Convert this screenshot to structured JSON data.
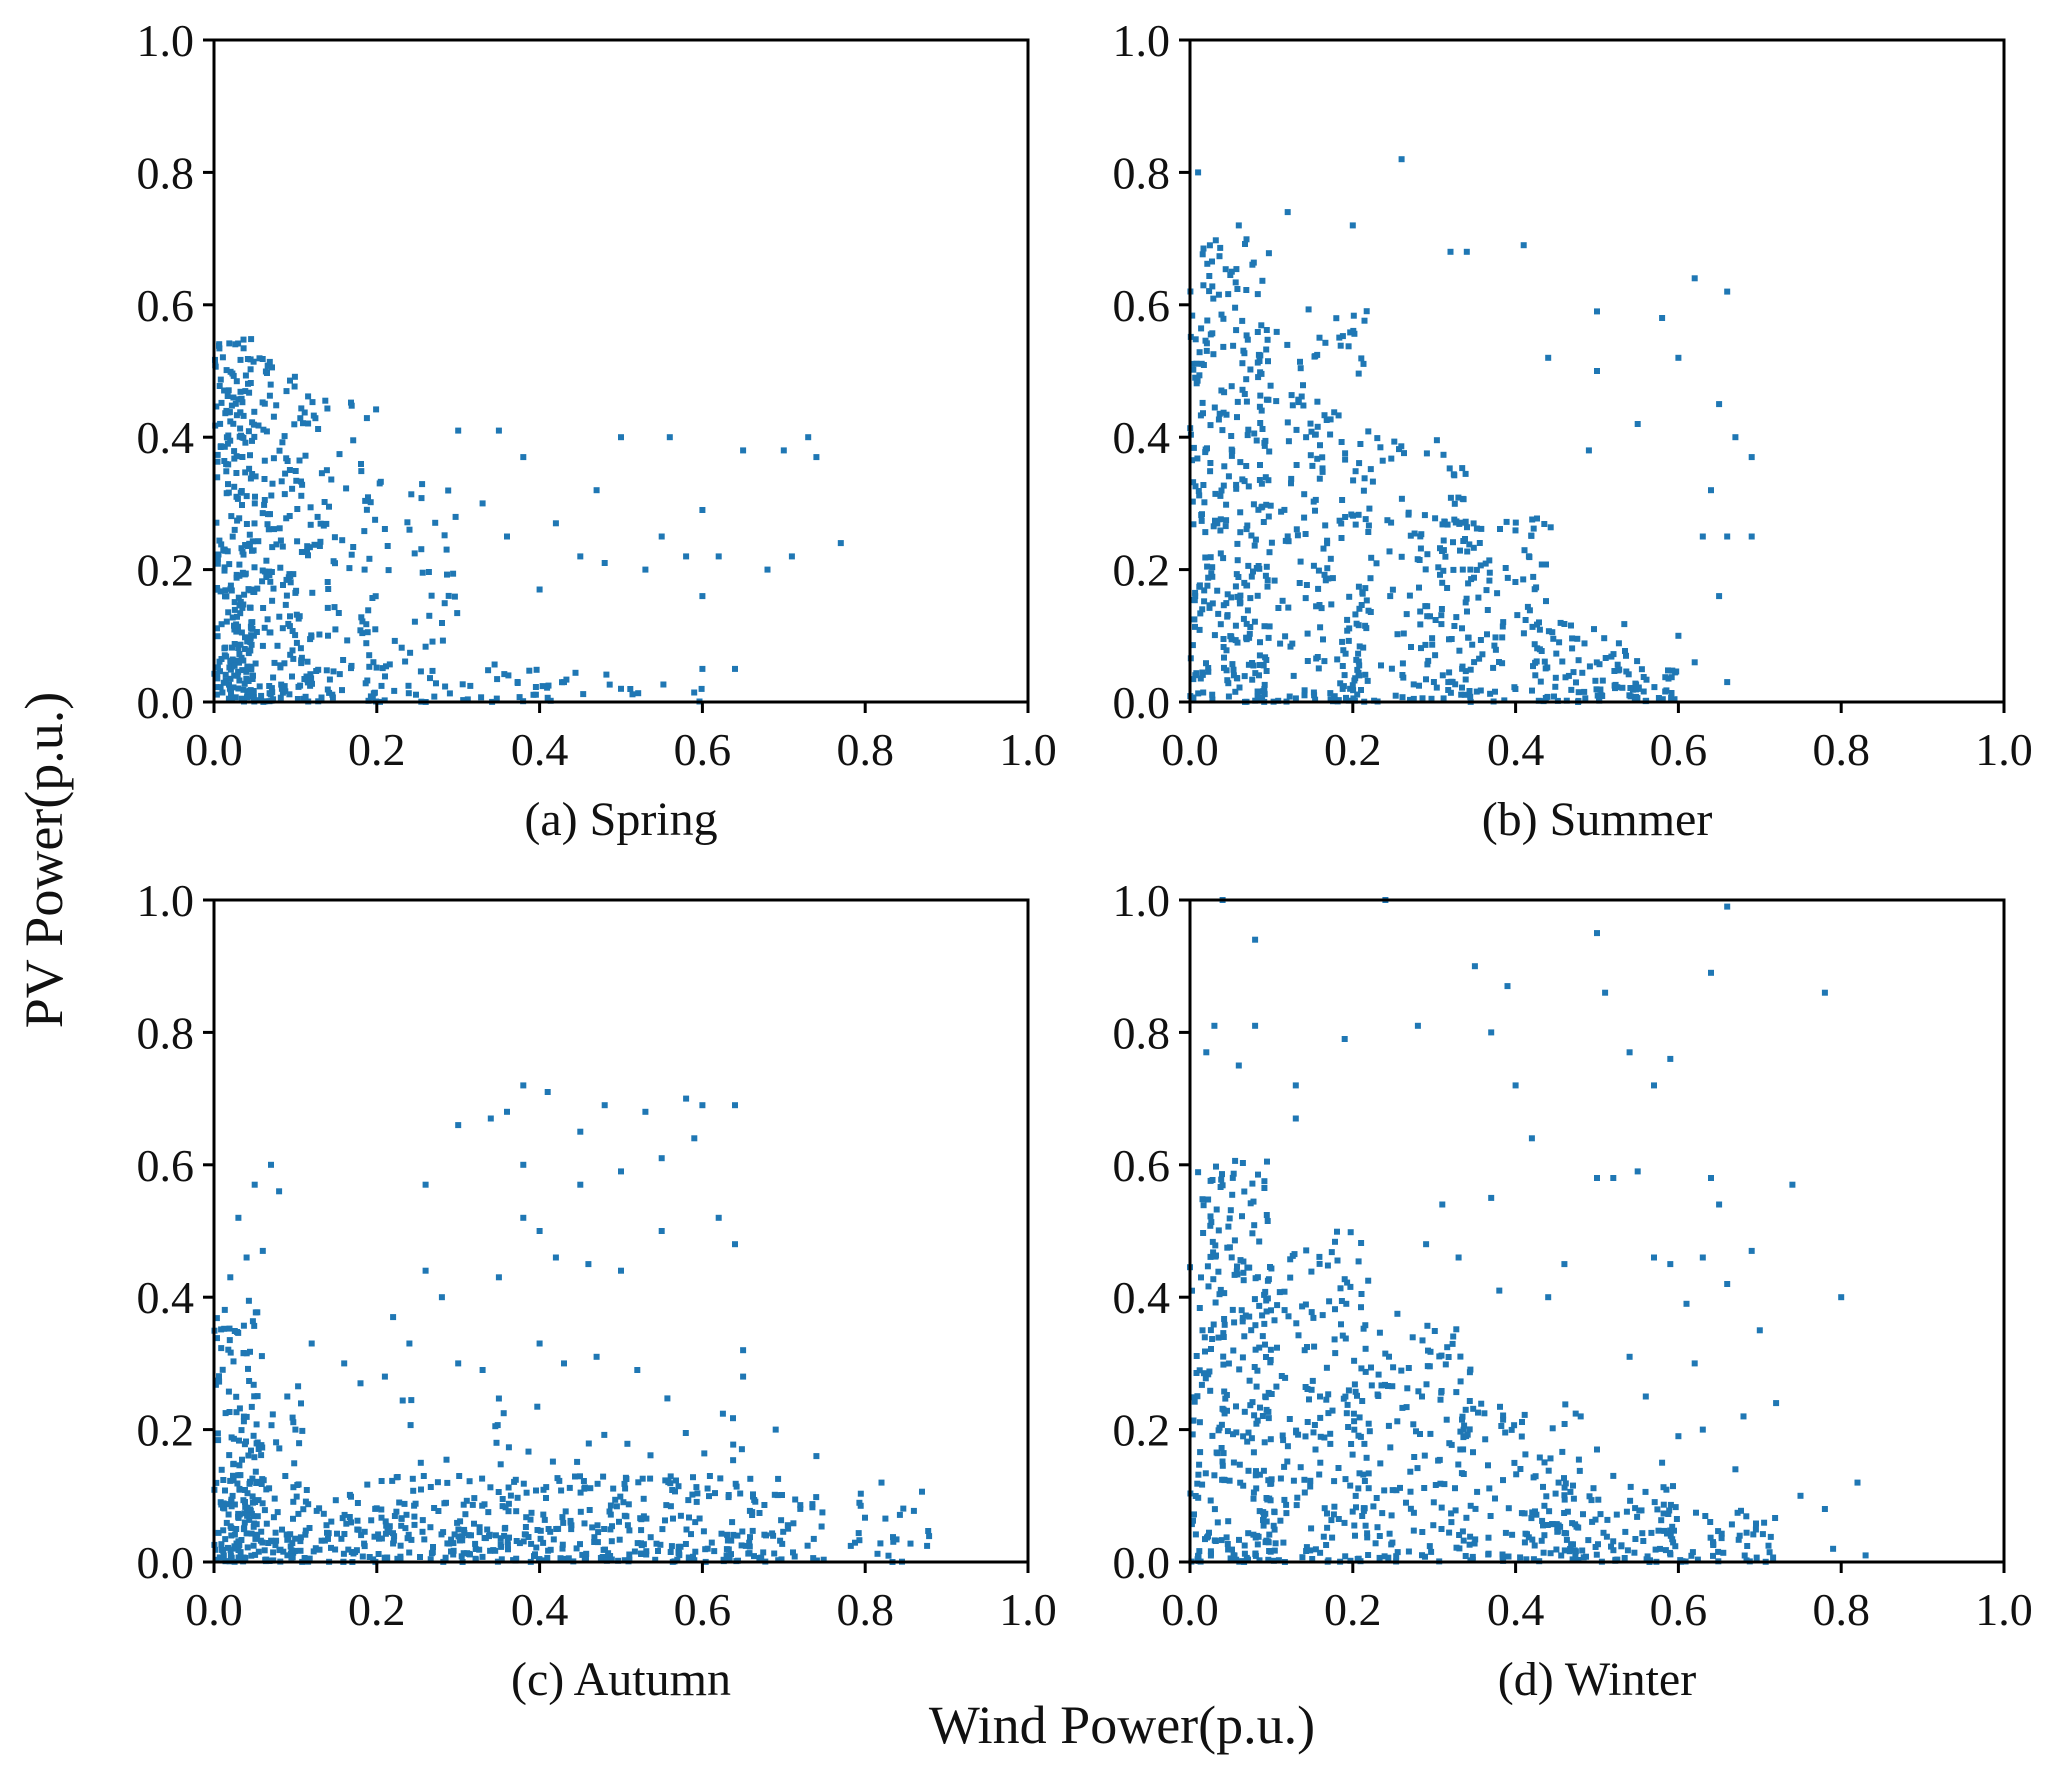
{
  "figure": {
    "ylabel": "PV Power(p.u.)",
    "xlabel": "Wind Power(p.u.)",
    "marker_color": "#1f77b4"
  },
  "chart_data": [
    {
      "type": "scatter",
      "caption": "(a) Spring",
      "xlim": [
        0,
        1
      ],
      "ylim": [
        0,
        1
      ],
      "xticks": [
        "0.0",
        "0.2",
        "0.4",
        "0.6",
        "0.8",
        "1.0"
      ],
      "yticks": [
        "0.0",
        "0.2",
        "0.4",
        "0.6",
        "0.8",
        "1.0"
      ],
      "points": {
        "gen": [
          {
            "n": 230,
            "x": [
              0,
              0.05
            ],
            "y": [
              0,
              0.55
            ]
          },
          {
            "n": 180,
            "x": [
              0.03,
              0.12
            ],
            "y": [
              0,
              0.52
            ]
          },
          {
            "n": 90,
            "x": [
              0.1,
              0.2
            ],
            "y": [
              0,
              0.46
            ]
          },
          {
            "n": 60,
            "x": [
              0.18,
              0.3
            ],
            "y": [
              0,
              0.35
            ]
          },
          {
            "n": 50,
            "x": [
              0,
              0.45
            ],
            "y": [
              0,
              0.06
            ]
          },
          {
            "n": 25,
            "x": [
              0.3,
              0.6
            ],
            "y": [
              0,
              0.05
            ]
          }
        ],
        "fixed": [
          [
            0.3,
            0.41
          ],
          [
            0.35,
            0.41
          ],
          [
            0.38,
            0.37
          ],
          [
            0.5,
            0.4
          ],
          [
            0.56,
            0.4
          ],
          [
            0.6,
            0.29
          ],
          [
            0.62,
            0.22
          ],
          [
            0.65,
            0.38
          ],
          [
            0.7,
            0.38
          ],
          [
            0.73,
            0.4
          ],
          [
            0.74,
            0.37
          ],
          [
            0.77,
            0.24
          ],
          [
            0.68,
            0.2
          ],
          [
            0.45,
            0.22
          ],
          [
            0.47,
            0.32
          ],
          [
            0.42,
            0.27
          ],
          [
            0.55,
            0.25
          ],
          [
            0.48,
            0.21
          ],
          [
            0.58,
            0.22
          ],
          [
            0.53,
            0.2
          ],
          [
            0.4,
            0.17
          ],
          [
            0.33,
            0.3
          ],
          [
            0.36,
            0.25
          ],
          [
            0.6,
            0.16
          ],
          [
            0.71,
            0.22
          ],
          [
            0.64,
            0.05
          ],
          [
            0.6,
            0.05
          ],
          [
            0.5,
            0.02
          ],
          [
            0.43,
            0.03
          ]
        ]
      }
    },
    {
      "type": "scatter",
      "caption": "(b) Summer",
      "xlim": [
        0,
        1
      ],
      "ylim": [
        0,
        1
      ],
      "xticks": [
        "0.0",
        "0.2",
        "0.4",
        "0.6",
        "0.8",
        "1.0"
      ],
      "yticks": [
        "0.0",
        "0.2",
        "0.4",
        "0.6",
        "0.8",
        "1.0"
      ],
      "points": {
        "gen": [
          {
            "n": 300,
            "x": [
              0,
              0.1
            ],
            "y": [
              0,
              0.7
            ]
          },
          {
            "n": 200,
            "x": [
              0.08,
              0.22
            ],
            "y": [
              0,
              0.6
            ]
          },
          {
            "n": 140,
            "x": [
              0.2,
              0.35
            ],
            "y": [
              0,
              0.4
            ]
          },
          {
            "n": 110,
            "x": [
              0.3,
              0.45
            ],
            "y": [
              0,
              0.28
            ]
          },
          {
            "n": 70,
            "x": [
              0.42,
              0.55
            ],
            "y": [
              0,
              0.12
            ]
          },
          {
            "n": 40,
            "x": [
              0.5,
              0.6
            ],
            "y": [
              0,
              0.05
            ]
          }
        ],
        "fixed": [
          [
            0.01,
            0.8
          ],
          [
            0.26,
            0.82
          ],
          [
            0.32,
            0.68
          ],
          [
            0.34,
            0.68
          ],
          [
            0.41,
            0.69
          ],
          [
            0.2,
            0.72
          ],
          [
            0.12,
            0.74
          ],
          [
            0.06,
            0.72
          ],
          [
            0.5,
            0.59
          ],
          [
            0.58,
            0.58
          ],
          [
            0.62,
            0.64
          ],
          [
            0.66,
            0.62
          ],
          [
            0.65,
            0.45
          ],
          [
            0.67,
            0.4
          ],
          [
            0.69,
            0.37
          ],
          [
            0.55,
            0.42
          ],
          [
            0.44,
            0.52
          ],
          [
            0.5,
            0.5
          ],
          [
            0.6,
            0.52
          ],
          [
            0.64,
            0.32
          ],
          [
            0.66,
            0.25
          ],
          [
            0.69,
            0.25
          ],
          [
            0.63,
            0.25
          ],
          [
            0.49,
            0.38
          ],
          [
            0.6,
            0.1
          ],
          [
            0.65,
            0.16
          ],
          [
            0.62,
            0.06
          ],
          [
            0.66,
            0.03
          ]
        ]
      }
    },
    {
      "type": "scatter",
      "caption": "(c) Autumn",
      "xlim": [
        0,
        1
      ],
      "ylim": [
        0,
        1
      ],
      "xticks": [
        "0.0",
        "0.2",
        "0.4",
        "0.6",
        "0.8",
        "1.0"
      ],
      "yticks": [
        "0.0",
        "0.2",
        "0.4",
        "0.6",
        "0.8",
        "1.0"
      ],
      "points": {
        "gen": [
          {
            "n": 120,
            "x": [
              0,
              0.06
            ],
            "y": [
              0,
              0.4
            ]
          },
          {
            "n": 60,
            "x": [
              0.02,
              0.12
            ],
            "y": [
              0,
              0.28
            ]
          },
          {
            "n": 420,
            "x": [
              0,
              0.75
            ],
            "y": [
              0,
              0.13
            ]
          },
          {
            "n": 120,
            "x": [
              0.05,
              0.7
            ],
            "y": [
              0,
              0.05
            ]
          },
          {
            "n": 45,
            "x": [
              0.2,
              0.65
            ],
            "y": [
              0.1,
              0.25
            ]
          },
          {
            "n": 25,
            "x": [
              0.78,
              0.88
            ],
            "y": [
              0,
              0.12
            ]
          }
        ],
        "fixed": [
          [
            0.05,
            0.57
          ],
          [
            0.07,
            0.6
          ],
          [
            0.08,
            0.56
          ],
          [
            0.03,
            0.52
          ],
          [
            0.06,
            0.47
          ],
          [
            0.04,
            0.46
          ],
          [
            0.02,
            0.43
          ],
          [
            0.26,
            0.57
          ],
          [
            0.26,
            0.44
          ],
          [
            0.3,
            0.66
          ],
          [
            0.34,
            0.67
          ],
          [
            0.36,
            0.68
          ],
          [
            0.38,
            0.72
          ],
          [
            0.41,
            0.71
          ],
          [
            0.45,
            0.65
          ],
          [
            0.48,
            0.69
          ],
          [
            0.53,
            0.68
          ],
          [
            0.55,
            0.61
          ],
          [
            0.58,
            0.7
          ],
          [
            0.6,
            0.69
          ],
          [
            0.64,
            0.69
          ],
          [
            0.59,
            0.64
          ],
          [
            0.62,
            0.52
          ],
          [
            0.64,
            0.48
          ],
          [
            0.38,
            0.6
          ],
          [
            0.38,
            0.52
          ],
          [
            0.4,
            0.5
          ],
          [
            0.42,
            0.46
          ],
          [
            0.35,
            0.43
          ],
          [
            0.46,
            0.45
          ],
          [
            0.45,
            0.57
          ],
          [
            0.5,
            0.59
          ],
          [
            0.5,
            0.44
          ],
          [
            0.55,
            0.5
          ],
          [
            0.28,
            0.4
          ],
          [
            0.3,
            0.3
          ],
          [
            0.33,
            0.29
          ],
          [
            0.4,
            0.33
          ],
          [
            0.43,
            0.3
          ],
          [
            0.47,
            0.31
          ],
          [
            0.52,
            0.29
          ],
          [
            0.65,
            0.32
          ],
          [
            0.65,
            0.28
          ],
          [
            0.22,
            0.37
          ],
          [
            0.24,
            0.33
          ],
          [
            0.21,
            0.28
          ],
          [
            0.16,
            0.3
          ],
          [
            0.18,
            0.27
          ],
          [
            0.12,
            0.33
          ],
          [
            0.09,
            0.25
          ],
          [
            0.1,
            0.2
          ],
          [
            0.69,
            0.2
          ],
          [
            0.74,
            0.16
          ],
          [
            0.82,
            0.12
          ]
        ]
      }
    },
    {
      "type": "scatter",
      "caption": "(d) Winter",
      "xlim": [
        0,
        1
      ],
      "ylim": [
        0,
        1
      ],
      "xticks": [
        "0.0",
        "0.2",
        "0.4",
        "0.6",
        "0.8",
        "1.0"
      ],
      "yticks": [
        "0.0",
        "0.2",
        "0.4",
        "0.6",
        "0.8",
        "1.0"
      ],
      "points": {
        "gen": [
          {
            "n": 250,
            "x": [
              0,
              0.1
            ],
            "y": [
              0,
              0.62
            ]
          },
          {
            "n": 200,
            "x": [
              0.08,
              0.22
            ],
            "y": [
              0,
              0.5
            ]
          },
          {
            "n": 150,
            "x": [
              0.2,
              0.35
            ],
            "y": [
              0,
              0.38
            ]
          },
          {
            "n": 110,
            "x": [
              0.33,
              0.48
            ],
            "y": [
              0,
              0.24
            ]
          },
          {
            "n": 80,
            "x": [
              0.45,
              0.6
            ],
            "y": [
              0,
              0.12
            ]
          },
          {
            "n": 60,
            "x": [
              0.55,
              0.72
            ],
            "y": [
              0,
              0.08
            ]
          }
        ],
        "fixed": [
          [
            0.04,
            1.0
          ],
          [
            0.24,
            1.0
          ],
          [
            0.66,
            0.99
          ],
          [
            0.5,
            0.95
          ],
          [
            0.64,
            0.89
          ],
          [
            0.08,
            0.94
          ],
          [
            0.35,
            0.9
          ],
          [
            0.39,
            0.87
          ],
          [
            0.51,
            0.86
          ],
          [
            0.78,
            0.86
          ],
          [
            0.03,
            0.81
          ],
          [
            0.08,
            0.81
          ],
          [
            0.28,
            0.81
          ],
          [
            0.19,
            0.79
          ],
          [
            0.13,
            0.72
          ],
          [
            0.13,
            0.67
          ],
          [
            0.37,
            0.8
          ],
          [
            0.4,
            0.72
          ],
          [
            0.42,
            0.64
          ],
          [
            0.54,
            0.77
          ],
          [
            0.57,
            0.72
          ],
          [
            0.59,
            0.76
          ],
          [
            0.06,
            0.75
          ],
          [
            0.02,
            0.77
          ],
          [
            0.74,
            0.57
          ],
          [
            0.72,
            0.24
          ],
          [
            0.64,
            0.58
          ],
          [
            0.65,
            0.54
          ],
          [
            0.57,
            0.46
          ],
          [
            0.59,
            0.45
          ],
          [
            0.63,
            0.46
          ],
          [
            0.66,
            0.42
          ],
          [
            0.69,
            0.47
          ],
          [
            0.61,
            0.39
          ],
          [
            0.52,
            0.58
          ],
          [
            0.55,
            0.59
          ],
          [
            0.5,
            0.58
          ],
          [
            0.46,
            0.45
          ],
          [
            0.44,
            0.4
          ],
          [
            0.37,
            0.55
          ],
          [
            0.38,
            0.41
          ],
          [
            0.31,
            0.54
          ],
          [
            0.33,
            0.46
          ],
          [
            0.29,
            0.48
          ],
          [
            0.8,
            0.4
          ],
          [
            0.7,
            0.35
          ],
          [
            0.68,
            0.22
          ],
          [
            0.62,
            0.3
          ],
          [
            0.63,
            0.2
          ],
          [
            0.67,
            0.14
          ],
          [
            0.75,
            0.1
          ],
          [
            0.78,
            0.08
          ],
          [
            0.82,
            0.12
          ],
          [
            0.79,
            0.02
          ],
          [
            0.83,
            0.01
          ],
          [
            0.54,
            0.31
          ],
          [
            0.56,
            0.25
          ],
          [
            0.48,
            0.22
          ],
          [
            0.5,
            0.17
          ],
          [
            0.52,
            0.13
          ],
          [
            0.58,
            0.15
          ],
          [
            0.6,
            0.19
          ]
        ]
      }
    }
  ]
}
